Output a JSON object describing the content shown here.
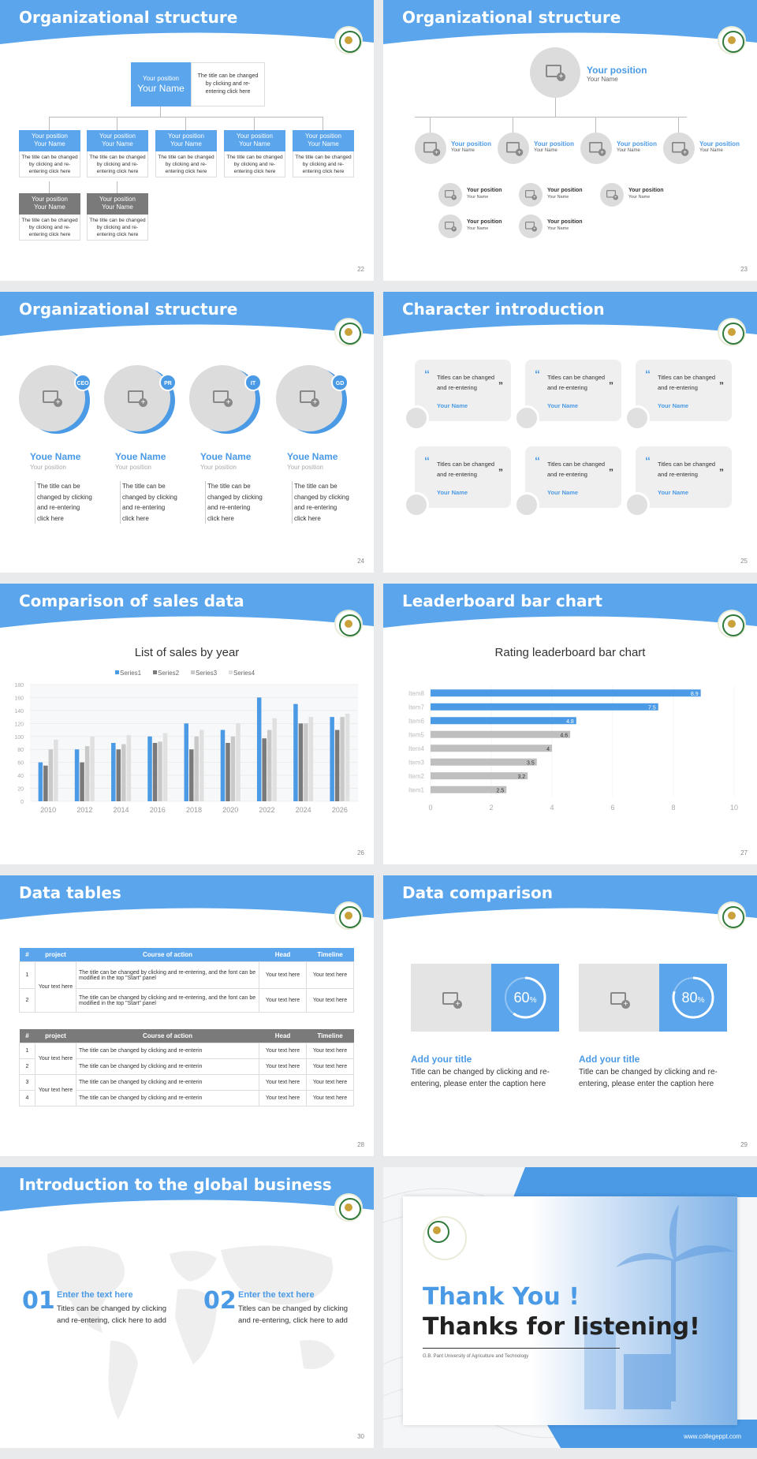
{
  "colors": {
    "accent": "#4a9ae6",
    "gray": "#7a7a7a"
  },
  "slides": {
    "s22": {
      "title": "Organizational structure",
      "page": "22",
      "top": {
        "position": "Your position",
        "name": "Your Name",
        "desc": "The title can be changed by clicking and re-entering click here"
      },
      "boxes": [
        {
          "position": "Your position",
          "name": "Your Name",
          "desc": "The title can be changed by clicking and re-entering click here"
        },
        {
          "position": "Your position",
          "name": "Your Name",
          "desc": "The title can be changed by clicking and re-entering click here"
        },
        {
          "position": "Your position",
          "name": "Your Name",
          "desc": "The title can be changed by clicking and re-entering click here"
        },
        {
          "position": "Your position",
          "name": "Your Name",
          "desc": "The title can be changed by clicking and re-entering click here"
        },
        {
          "position": "Your position",
          "name": "Your Name",
          "desc": "The title can be changed by clicking and re-entering click here"
        },
        {
          "position": "Your position",
          "name": "Your Name",
          "desc": "The title can be changed by clicking and re-entering click here"
        },
        {
          "position": "Your position",
          "name": "Your Name",
          "desc": "The title can be changed by clicking and re-entering click here"
        }
      ]
    },
    "s23": {
      "title": "Organizational structure",
      "page": "23",
      "top": {
        "position": "Your position",
        "name": "Your Name"
      },
      "items": [
        {
          "position": "Your position",
          "name": "Your Name"
        },
        {
          "position": "Your position",
          "name": "Your Name"
        },
        {
          "position": "Your position",
          "name": "Your Name"
        },
        {
          "position": "Your position",
          "name": "Your Name"
        }
      ],
      "subitems": [
        {
          "position": "Your position",
          "name": "Your Name"
        },
        {
          "position": "Your position",
          "name": "Your Name"
        },
        {
          "position": "Your position",
          "name": "Your Name"
        },
        {
          "position": "Your position",
          "name": "Your Name"
        },
        {
          "position": "Your position",
          "name": "Your Name"
        },
        {
          "position": "Your position",
          "name": "Your Name"
        }
      ]
    },
    "s24": {
      "title": "Organizational structure",
      "page": "24",
      "people": [
        {
          "badge": "CEO",
          "name": "Youe Name",
          "position": "Your position",
          "desc": "The title can be changed by clicking and re-entering click here"
        },
        {
          "badge": "PR",
          "name": "Youe Name",
          "position": "Your position",
          "desc": "The title can be changed by clicking and re-entering click here"
        },
        {
          "badge": "IT",
          "name": "Youe Name",
          "position": "Your position",
          "desc": "The title can be changed by clicking and re-entering click here"
        },
        {
          "badge": "GD",
          "name": "Youe Name",
          "position": "Your position",
          "desc": "The title can be changed by clicking and re-entering click here"
        }
      ]
    },
    "s25": {
      "title": "Character introduction",
      "page": "25",
      "quote_text": "Titles can be changed and re-entering",
      "name": "Your Name"
    },
    "s26": {
      "title": "Comparison of sales data",
      "page": "26"
    },
    "s27": {
      "title": "Leaderboard bar chart",
      "page": "27"
    },
    "s28": {
      "title": "Data tables",
      "page": "28",
      "headers": [
        "#",
        "project",
        "Course of action",
        "Head",
        "Timeline"
      ],
      "t1_rows": [
        {
          "n": "1",
          "action": "The title can be changed by clicking and re-entering, and the font can be modified in the top \"Start\" panel",
          "head": "Your text here",
          "time": "Your text here"
        },
        {
          "n": "2",
          "action": "The title can be changed by clicking and re-entering, and the font can be modified in the top \"Start\" panel",
          "head": "Your text here",
          "time": "Your text here"
        }
      ],
      "t1_project": "Your text here",
      "t2_rows": [
        {
          "n": "1",
          "action": "The title can be changed by clicking and re-enterin",
          "head": "Your text here",
          "time": "Your text here"
        },
        {
          "n": "2",
          "action": "The title can be changed by clicking and re-enterin",
          "head": "Your text here",
          "time": "Your text here"
        },
        {
          "n": "3",
          "action": "The title can be changed by clicking and re-enterin",
          "head": "Your text here",
          "time": "Your text here"
        },
        {
          "n": "4",
          "action": "The title can be changed by clicking and re-enterin",
          "head": "Your text here",
          "time": "Your text here"
        }
      ],
      "t2_project_a": "Your text here",
      "t2_project_b": "Your text here"
    },
    "s29": {
      "title": "Data comparison",
      "page": "29",
      "items": [
        {
          "pct": "60",
          "pct_value": 0.6,
          "unit": "%",
          "heading": "Add your title",
          "desc": "Title can be changed by clicking and re-entering, please enter the caption here"
        },
        {
          "pct": "80",
          "pct_value": 0.8,
          "unit": "%",
          "heading": "Add your title",
          "desc": "Title can be changed by clicking and re-entering, please enter the caption here"
        }
      ]
    },
    "s30": {
      "title": "Introduction to the global business",
      "page": "30",
      "items": [
        {
          "num": "01",
          "heading": "Enter the text here",
          "desc": "Titles can be changed by clicking and re-entering, click here to add"
        },
        {
          "num": "02",
          "heading": "Enter the text here",
          "desc": "Titles can be changed by clicking and re-entering, click here to add"
        }
      ]
    },
    "s31": {
      "thank": "Thank You !",
      "listen": "Thanks for listening!",
      "university": "G.B. Pant University of Agriculture and Technology",
      "site": "www.collegeppt.com"
    }
  },
  "chart_data": [
    {
      "type": "bar",
      "title": "List of sales by year",
      "categories": [
        "2010",
        "2012",
        "2014",
        "2016",
        "2018",
        "2020",
        "2022",
        "2024",
        "2026"
      ],
      "series": [
        {
          "name": "Series1",
          "color": "#4a9ae6",
          "values": [
            60,
            80,
            90,
            100,
            120,
            110,
            160,
            150,
            130
          ]
        },
        {
          "name": "Series2",
          "color": "#7a7a7a",
          "values": [
            55,
            60,
            80,
            90,
            80,
            90,
            97,
            120,
            110
          ]
        },
        {
          "name": "Series3",
          "color": "#c9c9c9",
          "values": [
            80,
            85,
            88,
            92,
            100,
            100,
            110,
            120,
            130
          ]
        },
        {
          "name": "Series4",
          "color": "#e0e0e0",
          "values": [
            95,
            100,
            102,
            105,
            110,
            120,
            128,
            130,
            135
          ]
        }
      ],
      "ylim": [
        0,
        180
      ],
      "yticks": [
        "0",
        "20",
        "40",
        "60",
        "80",
        "100",
        "120",
        "140",
        "160",
        "180"
      ],
      "grid": true,
      "legend": "top"
    },
    {
      "type": "bar",
      "orientation": "horizontal",
      "title": "Rating leaderboard bar chart",
      "categories": [
        "Item8",
        "Item7",
        "Item6",
        "Item5",
        "Item4",
        "Item3",
        "Item2",
        "Item1"
      ],
      "values": [
        8.9,
        7.5,
        4.8,
        4.6,
        4,
        3.5,
        3.2,
        2.5
      ],
      "labels": [
        "8.9",
        "7.5",
        "4.8",
        "4.6",
        "4",
        "3.5",
        "3.2",
        "2.5"
      ],
      "highlight": [
        true,
        true,
        true,
        false,
        false,
        false,
        false,
        false
      ],
      "xlim": [
        0,
        10
      ],
      "xticks": [
        "0",
        "2",
        "4",
        "6",
        "8",
        "10"
      ],
      "grid": true
    }
  ]
}
